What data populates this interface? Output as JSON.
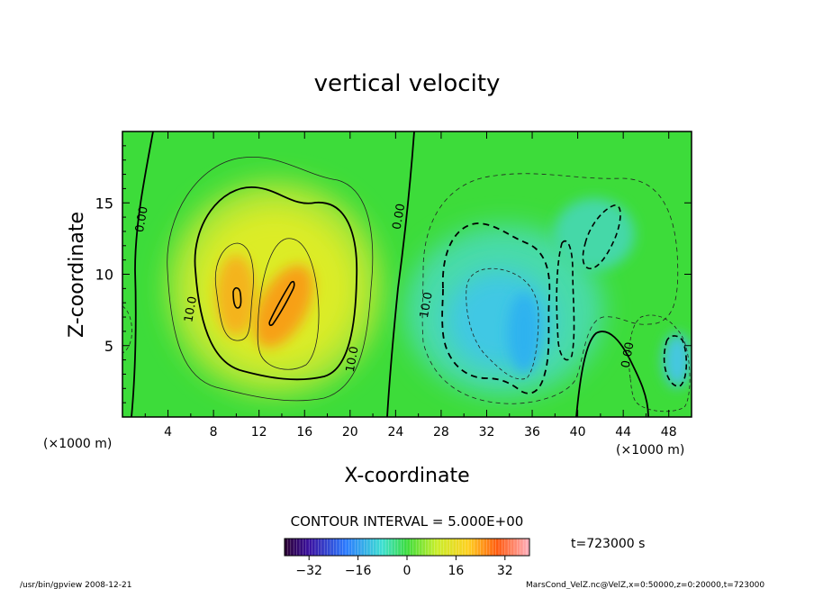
{
  "chart_data": {
    "type": "heatmap",
    "title": "vertical velocity",
    "xlabel": "X-coordinate",
    "ylabel": "Z-coordinate",
    "x_unit_left": "(×1000 m)",
    "x_unit_right": "(×1000 m)",
    "xlim": [
      0,
      50
    ],
    "ylim": [
      0,
      20
    ],
    "x_ticks": [
      4,
      8,
      12,
      16,
      20,
      24,
      28,
      32,
      36,
      40,
      44,
      48
    ],
    "y_ticks": [
      5,
      10,
      15
    ],
    "contour_interval_label": "CONTOUR INTERVAL = 5.000E+00",
    "time_label": "t=723000 s",
    "colorbar": {
      "min": -40,
      "max": 40,
      "ticks": [
        -32,
        -16,
        0,
        16,
        32
      ]
    },
    "contour_labels": [
      {
        "text": "0.00",
        "x": 2.0,
        "y": 13.8
      },
      {
        "text": "10.0",
        "x": 6.3,
        "y": 7.5
      },
      {
        "text": "10.0",
        "x": 20.5,
        "y": 4.0
      },
      {
        "text": "0.00",
        "x": 24.6,
        "y": 14.0
      },
      {
        "text": "10.0",
        "x": 27.0,
        "y": 7.8
      },
      {
        "text": "0.00",
        "x": 44.7,
        "y": 4.3
      }
    ],
    "features": [
      {
        "name": "updraft",
        "x_range": [
          4,
          24
        ],
        "peak_x": 14,
        "peak_z": 8,
        "peak_value": 30
      },
      {
        "name": "downdraft",
        "x_range": [
          26,
          50
        ],
        "peak_x": 34,
        "peak_z": 6,
        "peak_value": -18
      }
    ]
  },
  "footer": {
    "left": "/usr/bin/gpview   2008-12-21",
    "right": "MarsCond_VelZ.nc@VelZ,x=0:50000,z=0:20000,t=723000"
  }
}
